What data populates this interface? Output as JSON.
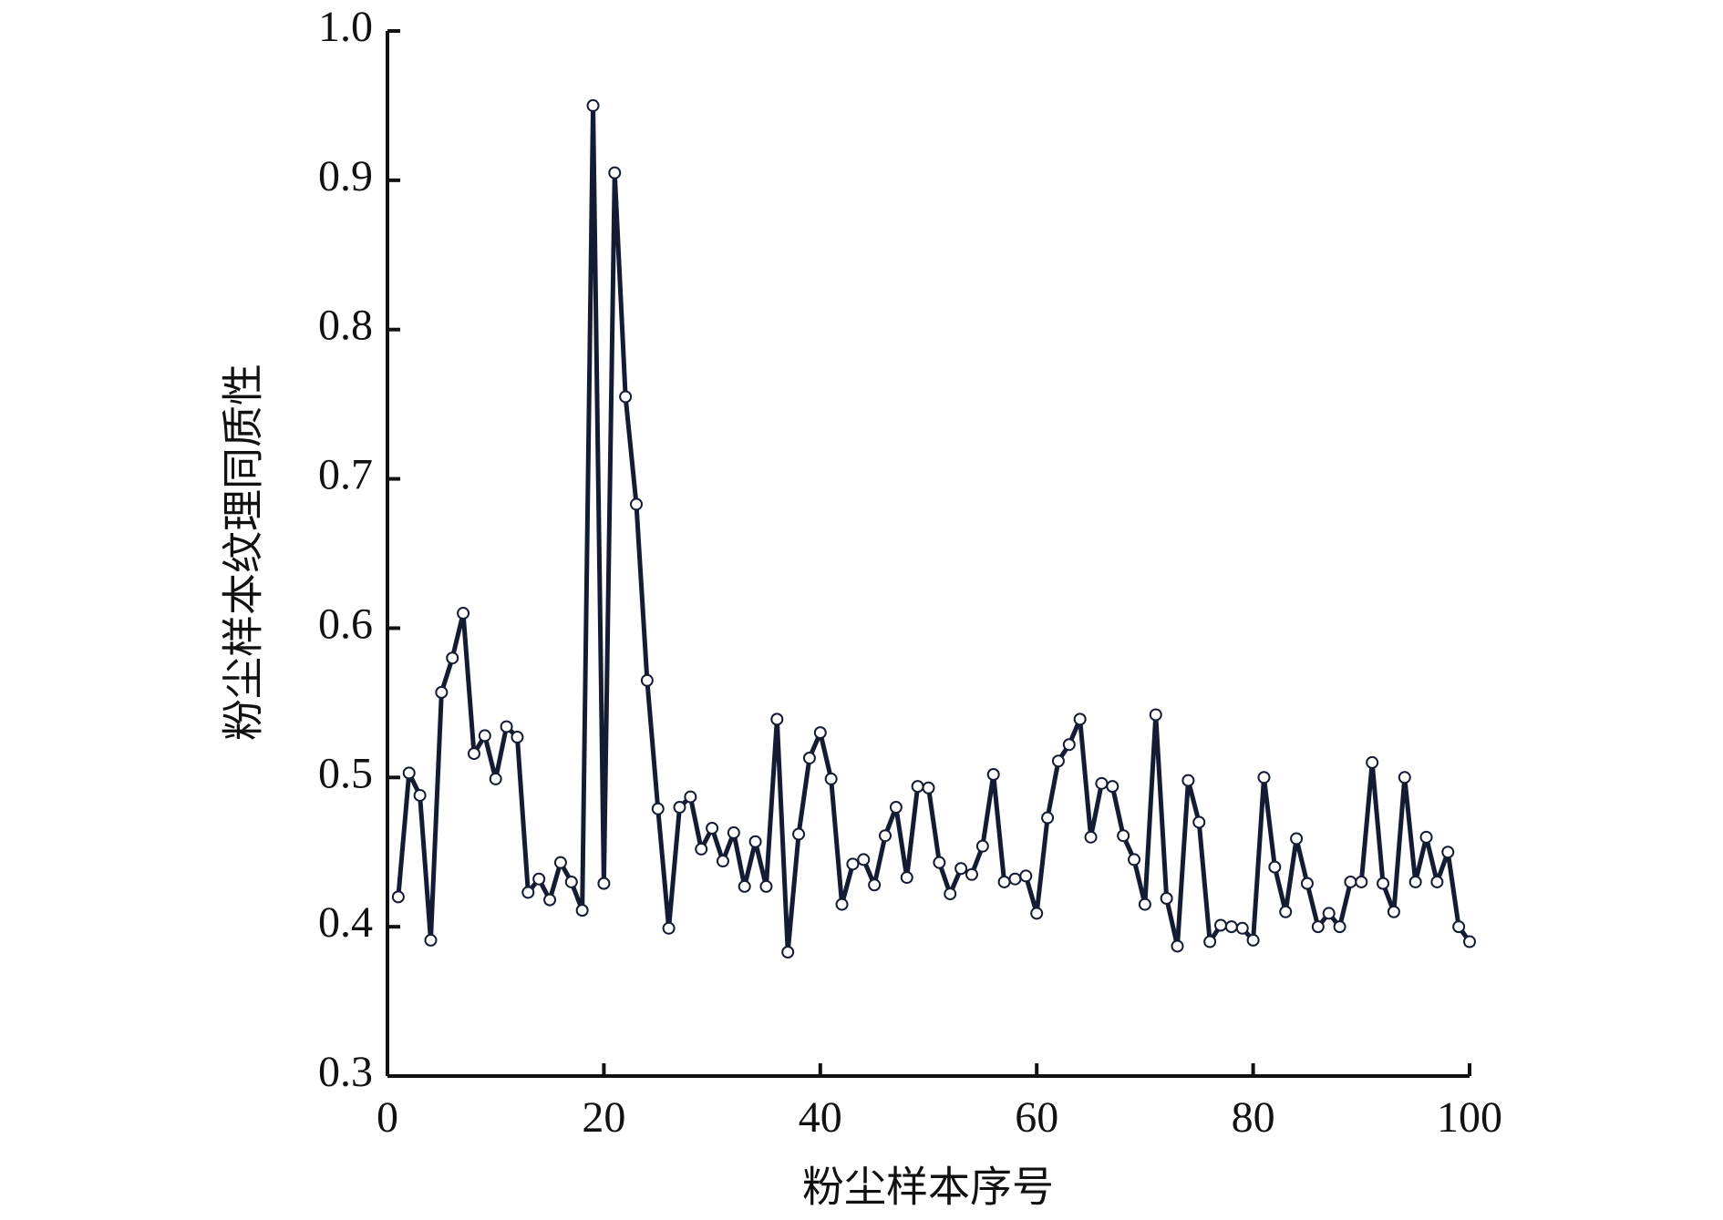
{
  "chart_data": {
    "type": "line",
    "xlabel": "粉尘样本序号",
    "ylabel": "粉尘样本纹理同质性",
    "x": [
      1,
      2,
      3,
      4,
      5,
      6,
      7,
      8,
      9,
      10,
      11,
      12,
      13,
      14,
      15,
      16,
      17,
      18,
      19,
      20,
      21,
      22,
      23,
      24,
      25,
      26,
      27,
      28,
      29,
      30,
      31,
      32,
      33,
      34,
      35,
      36,
      37,
      38,
      39,
      40,
      41,
      42,
      43,
      44,
      45,
      46,
      47,
      48,
      49,
      50,
      51,
      52,
      53,
      54,
      55,
      56,
      57,
      58,
      59,
      60,
      61,
      62,
      63,
      64,
      65,
      66,
      67,
      68,
      69,
      70,
      71,
      72,
      73,
      74,
      75,
      76,
      77,
      78,
      79,
      80,
      81,
      82,
      83,
      84,
      85,
      86,
      87,
      88,
      89,
      90,
      91,
      92,
      93,
      94,
      95,
      96,
      97,
      98,
      99,
      100
    ],
    "series": [
      {
        "color": "#141c33",
        "values": [
          0.42,
          0.503,
          0.488,
          0.391,
          0.557,
          0.58,
          0.61,
          0.516,
          0.528,
          0.499,
          0.534,
          0.527,
          0.423,
          0.432,
          0.418,
          0.443,
          0.43,
          0.411,
          0.95,
          0.429,
          0.905,
          0.755,
          0.683,
          0.565,
          0.479,
          0.399,
          0.48,
          0.487,
          0.452,
          0.466,
          0.444,
          0.463,
          0.427,
          0.457,
          0.427,
          0.539,
          0.383,
          0.462,
          0.513,
          0.53,
          0.499,
          0.415,
          0.442,
          0.445,
          0.428,
          0.461,
          0.48,
          0.433,
          0.494,
          0.493,
          0.443,
          0.422,
          0.439,
          0.435,
          0.454,
          0.502,
          0.43,
          0.432,
          0.434,
          0.409,
          0.473,
          0.511,
          0.522,
          0.539,
          0.46,
          0.496,
          0.494,
          0.461,
          0.445,
          0.415,
          0.542,
          0.419,
          0.387,
          0.498,
          0.47,
          0.39,
          0.401,
          0.4,
          0.399,
          0.391,
          0.5,
          0.44,
          0.41,
          0.459,
          0.429,
          0.4,
          0.409,
          0.4,
          0.43,
          0.43,
          0.51,
          0.429,
          0.41,
          0.5,
          0.43,
          0.46,
          0.43,
          0.45,
          0.4,
          0.39
        ]
      }
    ],
    "xlim": [
      0,
      100
    ],
    "xticks": [
      0,
      20,
      40,
      60,
      80,
      100
    ],
    "ylim": [
      0.3,
      1.0
    ],
    "yticks": [
      0.3,
      0.4,
      0.5,
      0.6,
      0.7,
      0.8,
      0.9,
      {
        "value": 1.0,
        "label": "1.0"
      }
    ],
    "grid": false
  }
}
